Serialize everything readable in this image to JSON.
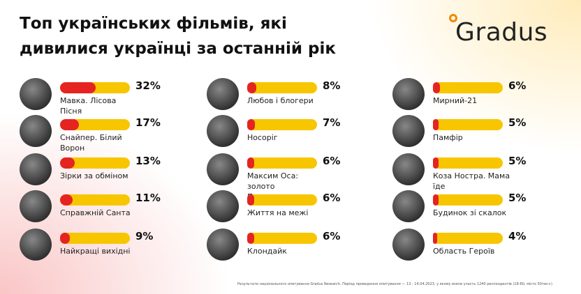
{
  "logo": "Gradus",
  "chart_data": {
    "type": "bar",
    "title": "Топ українських фільмів, які дивилися українці за останній рік",
    "categories": [
      "Мавка. Лісова Пісня",
      "Снайпер. Білий Ворон",
      "Зірки за обміном",
      "Справжній Санта",
      "Найкращі вихідні",
      "Любов і блогери",
      "Носоріг",
      "Максим Оса: золото Песиголовця",
      "Життя на межі",
      "Клондайк",
      "Мирний-21",
      "Памфір",
      "Коза Ностра. Мама їде",
      "Будинок зі скалок",
      "Область Героїв"
    ],
    "values": [
      32,
      17,
      13,
      11,
      9,
      8,
      7,
      6,
      6,
      6,
      6,
      5,
      5,
      5,
      4
    ],
    "value_labels": [
      "32%",
      "17%",
      "13%",
      "11%",
      "9%",
      "8%",
      "7%",
      "6%",
      "6%",
      "6%",
      "6%",
      "5%",
      "5%",
      "5%",
      "4%"
    ],
    "color": "#e52421",
    "track_color": "#f7c600",
    "footnote": "Результати національного опитування Gradus Research. Період проведення опитування — 13 - 14.04.2023, у якому взяли участь 1240 респондентів (18-60, місто 50тис+)"
  }
}
